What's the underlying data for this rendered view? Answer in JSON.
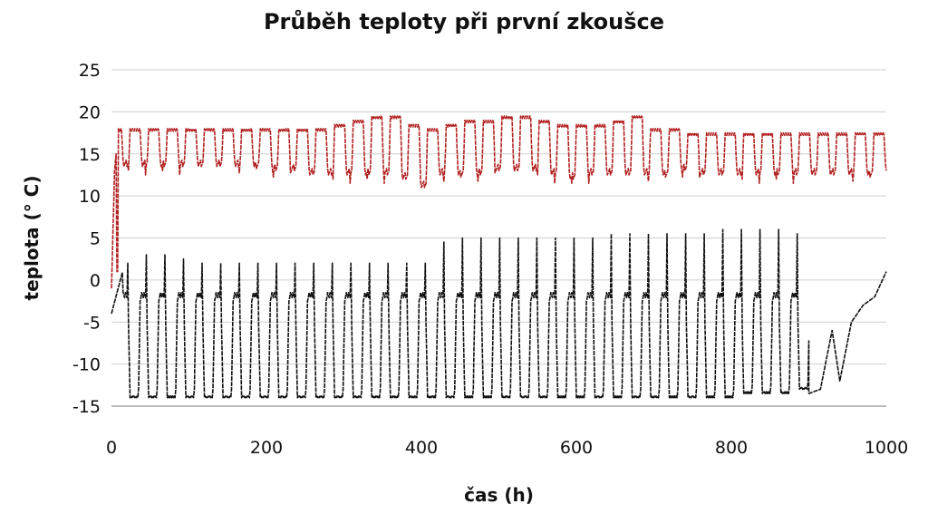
{
  "chart_data": {
    "type": "line",
    "title": "Průběh teploty při první zkoušce",
    "xlabel": "čas (h)",
    "ylabel": "teplota (° C)",
    "xlim": [
      0,
      1000
    ],
    "ylim": [
      -15,
      25
    ],
    "xticks": [
      0,
      200,
      400,
      600,
      800,
      1000
    ],
    "yticks": [
      25,
      20,
      15,
      10,
      5,
      0,
      -5,
      -10,
      -15
    ],
    "grid": "horizontal",
    "legend": "none",
    "x_step_h": 1,
    "series": [
      {
        "color": "#b22222",
        "cycle_period_h": 24,
        "description_points": [
          [
            0,
            -1
          ],
          [
            4,
            13
          ],
          [
            6,
            16
          ],
          [
            8,
            1
          ],
          [
            10,
            17.5
          ],
          [
            300,
            19.5
          ],
          [
            330,
            19.5
          ],
          [
            390,
            11
          ],
          [
            490,
            19.5
          ],
          [
            640,
            19
          ],
          [
            1000,
            17
          ]
        ],
        "high_by_day": [
          18,
          18,
          18,
          18,
          18,
          18,
          18,
          18,
          18,
          18,
          18,
          18,
          18.5,
          19,
          19.5,
          19.5,
          18.5,
          18,
          18.5,
          19,
          19,
          19.5,
          19.5,
          19,
          18.5,
          18.5,
          18.5,
          19,
          19.5,
          18,
          18,
          17.5,
          17.5,
          17.5,
          17.5,
          17.5,
          17.5,
          17.5,
          17.5,
          17.5,
          17.5,
          17.5
        ],
        "low_by_day": [
          13.5,
          13.5,
          13.5,
          13.5,
          13.5,
          13.5,
          13.5,
          13.5,
          13,
          13,
          12.5,
          12.5,
          12.5,
          12.5,
          12.5,
          12,
          11,
          12.5,
          12.5,
          12.5,
          13,
          13,
          13,
          12.5,
          12,
          12.5,
          12.5,
          12.5,
          12.5,
          12.5,
          13,
          12.5,
          12.5,
          12.5,
          12.5,
          12.5,
          12.5,
          12.5,
          12.5,
          12.5,
          12.5,
          13
        ]
      },
      {
        "color": "#111111",
        "cycle_period_h": 24,
        "high_by_day": [
          2,
          3,
          3,
          2.5,
          2,
          2,
          2,
          2,
          2,
          2,
          2,
          2,
          2,
          2,
          2,
          2,
          2,
          4.5,
          5,
          5,
          5,
          5,
          5,
          5,
          5,
          5,
          5.5,
          5.5,
          5.5,
          5.5,
          5.5,
          5.5,
          6,
          6,
          6,
          6,
          5.5,
          5,
          -1,
          -1,
          -2,
          -1
        ],
        "low_by_day": [
          -14,
          -14,
          -14,
          -14,
          -14,
          -14,
          -14,
          -14,
          -14,
          -14,
          -14,
          -14,
          -14,
          -14,
          -14,
          -14,
          -14,
          -14,
          -14,
          -14,
          -14,
          -14,
          -14,
          -14,
          -14,
          -14,
          -14,
          -14,
          -14,
          -14,
          -14,
          -14,
          -14,
          -14,
          -13.5,
          -13.5,
          -13.5,
          -13,
          -12,
          -6,
          -5,
          -4
        ],
        "tail_points": [
          [
            900,
            -13.5
          ],
          [
            915,
            -13
          ],
          [
            930,
            -6
          ],
          [
            940,
            -12
          ],
          [
            955,
            -5
          ],
          [
            970,
            -3
          ],
          [
            985,
            -2
          ],
          [
            1000,
            1
          ]
        ]
      }
    ]
  }
}
